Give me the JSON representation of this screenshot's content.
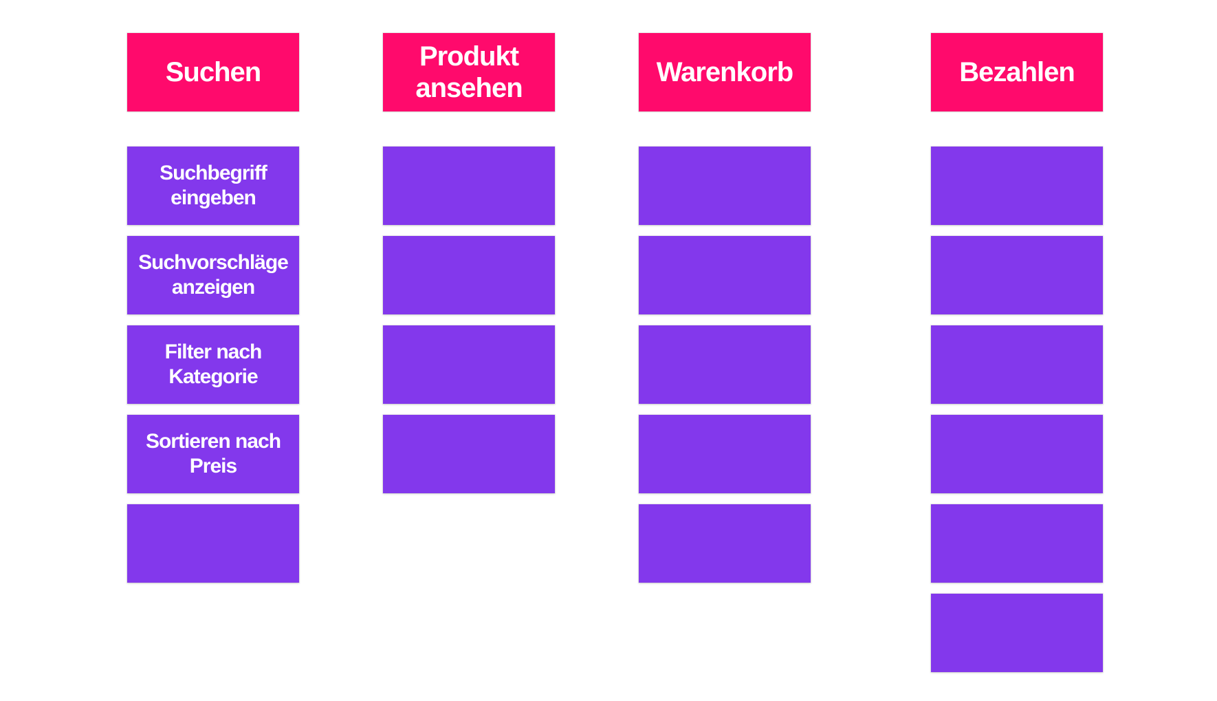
{
  "colors": {
    "header_background": "#ff0a6c",
    "card_background": "#8338ec",
    "text": "#ffffff",
    "canvas": "#ffffff"
  },
  "columns": [
    {
      "title": "Suchen",
      "cards": [
        "Suchbegriff eingeben",
        "Suchvorschläge anzeigen",
        "Filter nach Kategorie",
        "Sortieren nach Preis",
        ""
      ]
    },
    {
      "title": "Produkt ansehen",
      "cards": [
        "",
        "",
        "",
        ""
      ]
    },
    {
      "title": "Warenkorb",
      "cards": [
        "",
        "",
        "",
        "",
        ""
      ]
    },
    {
      "title": "Bezahlen",
      "cards": [
        "",
        "",
        "",
        "",
        "",
        ""
      ]
    }
  ]
}
